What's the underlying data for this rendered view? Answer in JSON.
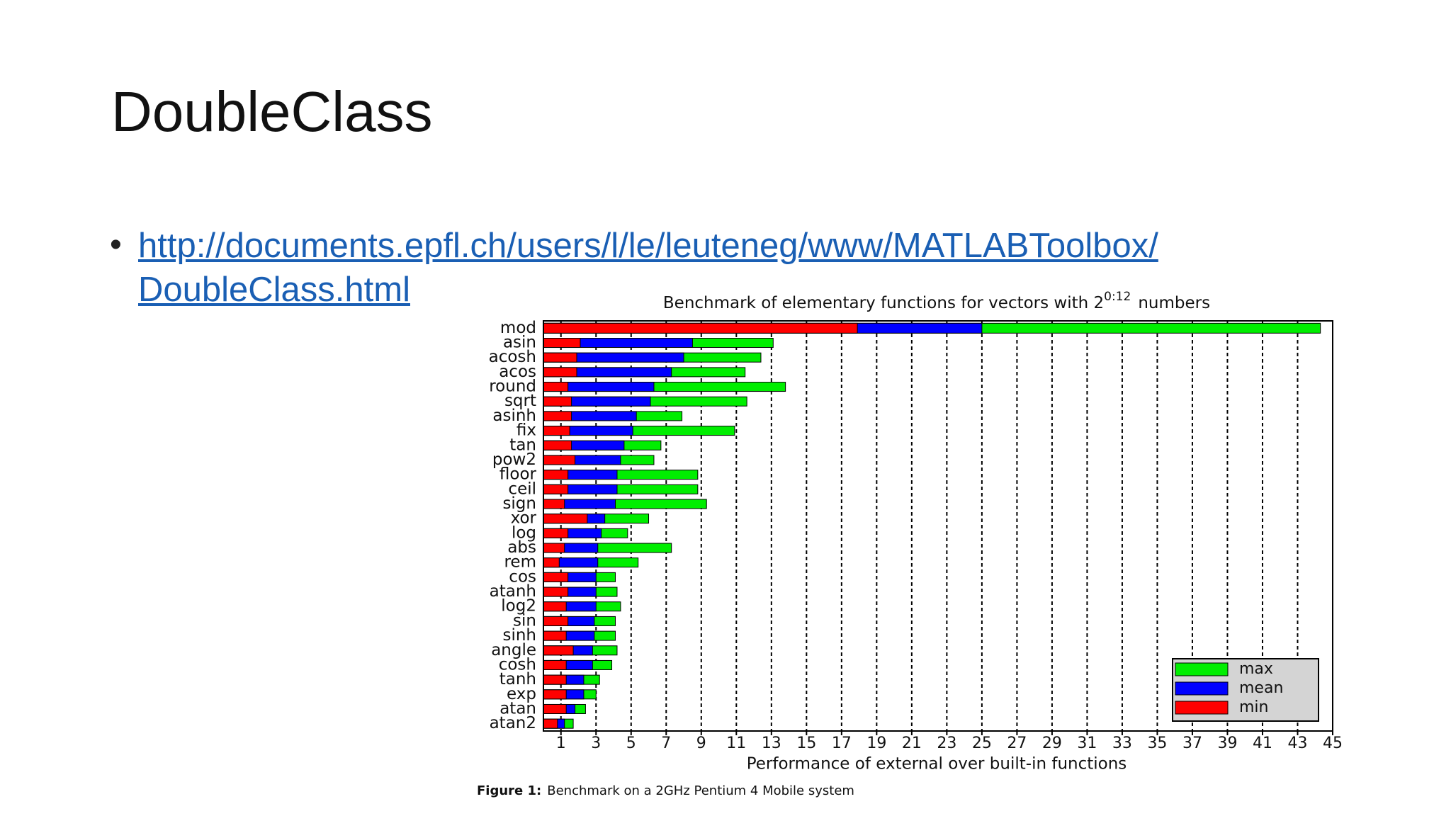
{
  "slide_title": "DoubleClass",
  "link": [
    "http://documents.epfl.ch/users/l/le/leuteneg/www/MATLABToolbox/",
    "DoubleClass.html"
  ],
  "chart_data": {
    "type": "barh",
    "title": [
      "Benchmark of elementary functions for vectors with 2",
      "0:12",
      "numbers"
    ],
    "xlabel": "Performance of external over built-in functions",
    "caption_label": "Figure 1:",
    "caption": "Benchmark on a 2GHz Pentium 4 Mobile system",
    "categories": [
      "mod",
      "asin",
      "acosh",
      "acos",
      "round",
      "sqrt",
      "asinh",
      "fix",
      "tan",
      "pow2",
      "floor",
      "ceil",
      "sign",
      "xor",
      "log",
      "abs",
      "rem",
      "cos",
      "atanh",
      "log2",
      "sin",
      "sinh",
      "angle",
      "cosh",
      "tanh",
      "exp",
      "atan",
      "atan2"
    ],
    "series": [
      {
        "name": "min",
        "color": "#ff0000",
        "values": [
          17.9,
          2.1,
          1.9,
          1.9,
          1.4,
          1.6,
          1.6,
          1.5,
          1.6,
          1.8,
          1.4,
          1.4,
          1.2,
          2.5,
          1.4,
          1.2,
          0.9,
          1.4,
          1.4,
          1.3,
          1.4,
          1.3,
          1.7,
          1.3,
          1.3,
          1.3,
          1.3,
          0.8
        ]
      },
      {
        "name": "mean",
        "color": "#0000ff",
        "values": [
          25.0,
          8.5,
          8.0,
          7.3,
          6.3,
          6.1,
          5.3,
          5.1,
          4.6,
          4.4,
          4.2,
          4.2,
          4.1,
          3.5,
          3.3,
          3.1,
          3.1,
          3.0,
          3.0,
          3.0,
          2.9,
          2.9,
          2.8,
          2.8,
          2.3,
          2.3,
          1.8,
          1.2
        ]
      },
      {
        "name": "max",
        "color": "#00ee00",
        "values": [
          44.3,
          13.1,
          12.4,
          11.5,
          13.8,
          11.6,
          7.9,
          10.9,
          6.7,
          6.3,
          8.8,
          8.8,
          9.3,
          6.0,
          4.8,
          7.3,
          5.4,
          4.1,
          4.2,
          4.4,
          4.1,
          4.1,
          4.2,
          3.9,
          3.2,
          3.0,
          2.4,
          1.7
        ]
      }
    ],
    "xlim": [
      0,
      45
    ],
    "xticks": [
      1,
      3,
      5,
      7,
      9,
      11,
      13,
      15,
      17,
      19,
      21,
      23,
      25,
      27,
      29,
      31,
      33,
      35,
      37,
      39,
      41,
      43,
      45
    ],
    "grid": true,
    "legend": "lower right"
  }
}
